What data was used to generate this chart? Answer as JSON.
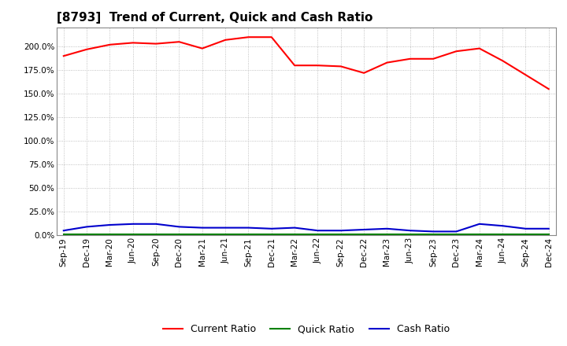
{
  "title": "[8793]  Trend of Current, Quick and Cash Ratio",
  "x_labels": [
    "Sep-19",
    "Dec-19",
    "Mar-20",
    "Jun-20",
    "Sep-20",
    "Dec-20",
    "Mar-21",
    "Jun-21",
    "Sep-21",
    "Dec-21",
    "Mar-22",
    "Jun-22",
    "Sep-22",
    "Dec-22",
    "Mar-23",
    "Jun-23",
    "Sep-23",
    "Dec-23",
    "Mar-24",
    "Jun-24",
    "Sep-24",
    "Dec-24"
  ],
  "current_ratio": [
    190,
    197,
    202,
    204,
    203,
    205,
    198,
    207,
    210,
    210,
    180,
    180,
    179,
    172,
    183,
    187,
    187,
    195,
    198,
    185,
    170,
    155
  ],
  "quick_ratio": [
    1.0,
    1.0,
    1.0,
    1.0,
    1.0,
    1.0,
    1.0,
    1.0,
    1.0,
    1.0,
    1.0,
    1.0,
    1.0,
    1.0,
    1.0,
    1.0,
    1.0,
    1.0,
    1.0,
    1.0,
    1.0,
    1.0
  ],
  "cash_ratio": [
    5,
    9,
    11,
    12,
    12,
    9,
    8,
    8,
    8,
    7,
    8,
    5,
    5,
    6,
    7,
    5,
    4,
    4,
    12,
    10,
    7,
    7
  ],
  "current_color": "#FF0000",
  "quick_color": "#008000",
  "cash_color": "#0000CD",
  "bg_color": "#FFFFFF",
  "plot_bg_color": "#FFFFFF",
  "grid_color": "#B0B0B0",
  "ylim": [
    0,
    220
  ],
  "yticks": [
    0,
    25,
    50,
    75,
    100,
    125,
    150,
    175,
    200
  ],
  "title_fontsize": 11,
  "legend_fontsize": 9,
  "tick_fontsize": 7.5
}
